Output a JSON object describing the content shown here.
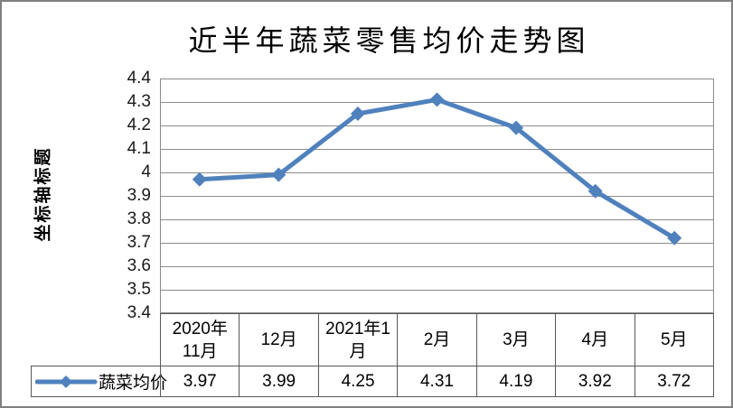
{
  "window": {
    "background": "#ffffff",
    "frame_color": "#808080"
  },
  "colors": {
    "series_blue": "#4F81BD",
    "gridline_gray": "#8C8C8C",
    "table_line_gray": "#595959",
    "text_black": "#000000"
  },
  "chart_data": {
    "type": "line",
    "title": "近半年蔬菜零售均价走势图",
    "y_axis_title": "坐标轴标题",
    "categories": [
      "2020年11月",
      "12月",
      "2021年1月",
      "2月",
      "3月",
      "4月",
      "5月"
    ],
    "display_categories": [
      "2020年\n11月",
      "12月",
      "2021年1\n月",
      "2月",
      "3月",
      "4月",
      "5月"
    ],
    "series": [
      {
        "name": "蔬菜均价",
        "values": [
          3.97,
          3.99,
          4.25,
          4.31,
          4.19,
          3.92,
          3.72
        ],
        "color": "#4F81BD",
        "marker": "diamond"
      }
    ],
    "ylim": [
      3.4,
      4.4
    ],
    "y_tick_step": 0.1,
    "y_ticks": [
      "4.4",
      "4.3",
      "4.2",
      "4.1",
      "4",
      "3.9",
      "3.8",
      "3.7",
      "3.6",
      "3.5",
      "3.4"
    ],
    "grid": "horizontal",
    "legend_position": "bottom-left-of-data-table",
    "data_table_values": [
      "3.97",
      "3.99",
      "4.25",
      "4.31",
      "4.19",
      "3.92",
      "3.72"
    ]
  }
}
